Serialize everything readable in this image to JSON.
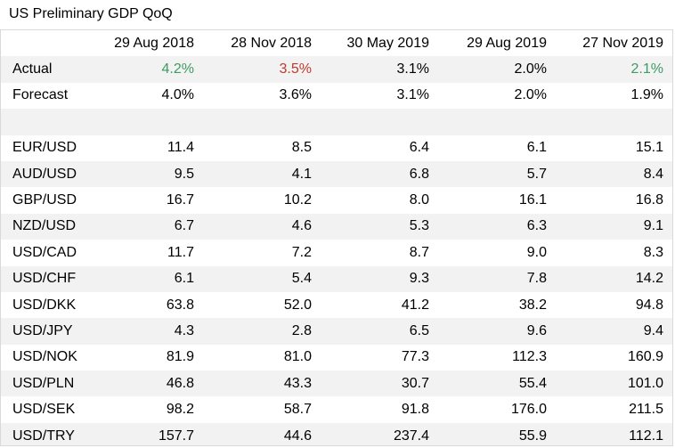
{
  "title": "US Preliminary GDP QoQ",
  "columns": [
    "29 Aug 2018",
    "28 Nov 2018",
    "30 May 2019",
    "29 Aug 2019",
    "27 Nov 2019"
  ],
  "rows": [
    {
      "label": "Actual",
      "values": [
        "4.2%",
        "3.5%",
        "3.1%",
        "2.0%",
        "2.1%"
      ],
      "colors": [
        "green",
        "red",
        "",
        "",
        "green"
      ]
    },
    {
      "label": "Forecast",
      "values": [
        "4.0%",
        "3.6%",
        "3.1%",
        "2.0%",
        "1.9%"
      ],
      "colors": [
        "",
        "",
        "",
        "",
        ""
      ]
    },
    {
      "label": "",
      "values": [
        "",
        "",
        "",
        "",
        ""
      ],
      "colors": [
        "",
        "",
        "",
        "",
        ""
      ]
    },
    {
      "label": "EUR/USD",
      "values": [
        "11.4",
        "8.5",
        "6.4",
        "6.1",
        "15.1"
      ],
      "colors": [
        "",
        "",
        "",
        "",
        ""
      ]
    },
    {
      "label": "AUD/USD",
      "values": [
        "9.5",
        "4.1",
        "6.8",
        "5.7",
        "8.4"
      ],
      "colors": [
        "",
        "",
        "",
        "",
        ""
      ]
    },
    {
      "label": "GBP/USD",
      "values": [
        "16.7",
        "10.2",
        "8.0",
        "16.1",
        "16.8"
      ],
      "colors": [
        "",
        "",
        "",
        "",
        ""
      ]
    },
    {
      "label": "NZD/USD",
      "values": [
        "6.7",
        "4.6",
        "5.3",
        "6.3",
        "9.1"
      ],
      "colors": [
        "",
        "",
        "",
        "",
        ""
      ]
    },
    {
      "label": "USD/CAD",
      "values": [
        "11.7",
        "7.2",
        "8.7",
        "9.0",
        "8.3"
      ],
      "colors": [
        "",
        "",
        "",
        "",
        ""
      ]
    },
    {
      "label": "USD/CHF",
      "values": [
        "6.1",
        "5.4",
        "9.3",
        "7.8",
        "14.2"
      ],
      "colors": [
        "",
        "",
        "",
        "",
        ""
      ]
    },
    {
      "label": "USD/DKK",
      "values": [
        "63.8",
        "52.0",
        "41.2",
        "38.2",
        "94.8"
      ],
      "colors": [
        "",
        "",
        "",
        "",
        ""
      ]
    },
    {
      "label": "USD/JPY",
      "values": [
        "4.3",
        "2.8",
        "6.5",
        "9.6",
        "9.4"
      ],
      "colors": [
        "",
        "",
        "",
        "",
        ""
      ]
    },
    {
      "label": "USD/NOK",
      "values": [
        "81.9",
        "81.0",
        "77.3",
        "112.3",
        "160.9"
      ],
      "colors": [
        "",
        "",
        "",
        "",
        ""
      ]
    },
    {
      "label": "USD/PLN",
      "values": [
        "46.8",
        "43.3",
        "30.7",
        "55.4",
        "101.0"
      ],
      "colors": [
        "",
        "",
        "",
        "",
        ""
      ]
    },
    {
      "label": "USD/SEK",
      "values": [
        "98.2",
        "58.7",
        "91.8",
        "176.0",
        "211.5"
      ],
      "colors": [
        "",
        "",
        "",
        "",
        ""
      ]
    },
    {
      "label": "USD/TRY",
      "values": [
        "157.7",
        "44.6",
        "237.4",
        "55.9",
        "112.1"
      ],
      "colors": [
        "",
        "",
        "",
        "",
        ""
      ]
    }
  ],
  "colors": {
    "positive": "#3f9a63",
    "negative": "#c0392b",
    "stripe": "#f2f2f2"
  }
}
